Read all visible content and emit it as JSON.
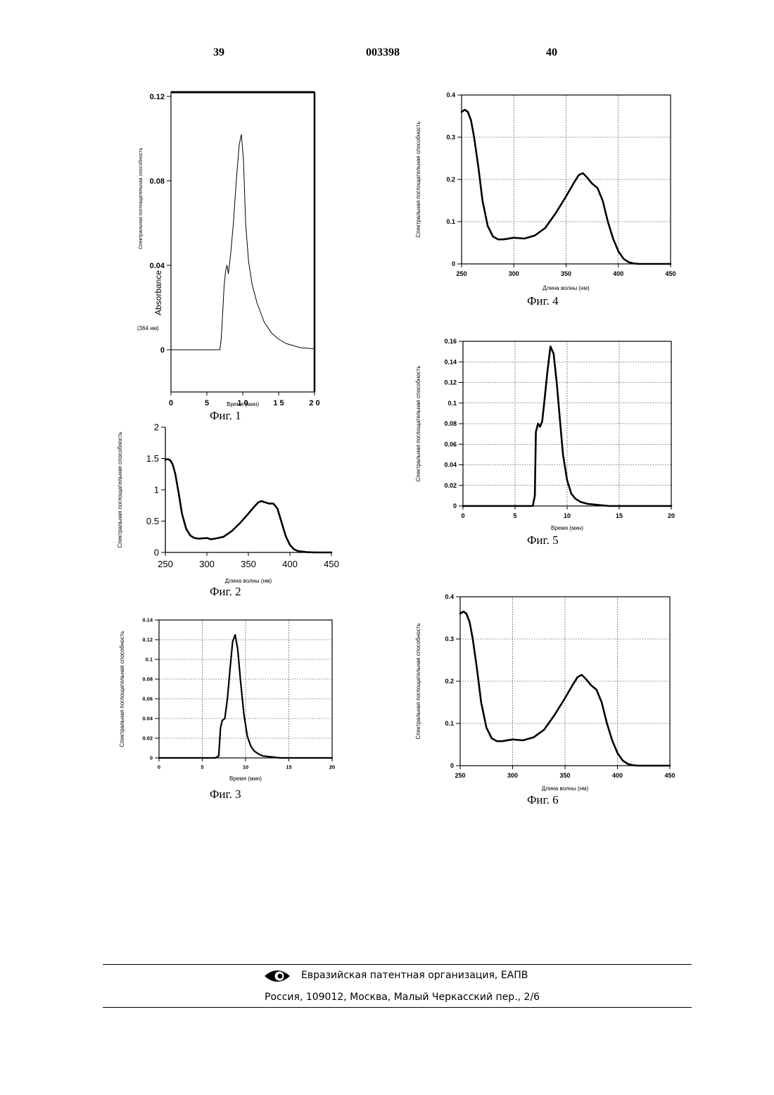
{
  "header": {
    "page_left": "39",
    "doc_number": "003398",
    "page_right": "40"
  },
  "footer": {
    "org": "Евразийская патентная организация, ЕАПВ",
    "address": "Россия, 109012, Москва, Малый Черкасский пер., 2/6"
  },
  "chart_data": [
    {
      "caption": "Фиг. 1",
      "type": "line",
      "xlabel": "Время (мин)",
      "ylabel": "Спектральная поглощательная способность",
      "ylabel2": "Absorbance",
      "ylabel3": "(364 нм)",
      "xlim": [
        0,
        20
      ],
      "ylim": [
        -0.02,
        0.122
      ],
      "xticks": [
        0,
        5,
        10,
        15,
        20
      ],
      "xtick_labels": [
        "0",
        "5",
        "1 0",
        "1 5",
        "2 0"
      ],
      "yticks": [
        0,
        0.04,
        0.08,
        0.12
      ],
      "ytick_labels": [
        "0",
        "0.04",
        "0.08",
        "0.12"
      ],
      "grid": false,
      "x": [
        0,
        3,
        6.8,
        7.0,
        7.4,
        7.6,
        7.8,
        8.0,
        8.3,
        8.7,
        9.1,
        9.5,
        9.8,
        10.1,
        10.4,
        10.8,
        11.3,
        12,
        13,
        14,
        15,
        16,
        17,
        18,
        20
      ],
      "y": [
        0,
        0,
        0,
        0.005,
        0.03,
        0.037,
        0.04,
        0.036,
        0.045,
        0.06,
        0.08,
        0.097,
        0.102,
        0.09,
        0.06,
        0.042,
        0.031,
        0.022,
        0.013,
        0.008,
        0.005,
        0.003,
        0.002,
        0.001,
        0.0004
      ]
    },
    {
      "caption": "Фиг. 2",
      "type": "line",
      "xlabel": "Длина волны (нм)",
      "ylabel": "Спектральная поглощательная способность",
      "xlim": [
        250,
        450
      ],
      "ylim": [
        0,
        2
      ],
      "xticks": [
        250,
        300,
        350,
        400,
        450
      ],
      "xtick_labels": [
        "250",
        "300",
        "350",
        "400",
        "450"
      ],
      "yticks": [
        0,
        0.5,
        1,
        1.5,
        2
      ],
      "ytick_labels": [
        "0",
        "0.5",
        "1",
        "1.5",
        "2"
      ],
      "grid": false,
      "x": [
        250,
        253,
        256,
        259,
        262,
        266,
        270,
        275,
        280,
        285,
        290,
        300,
        305,
        310,
        320,
        330,
        340,
        350,
        357,
        362,
        366,
        370,
        375,
        380,
        385,
        390,
        395,
        400,
        405,
        410,
        420,
        430,
        440,
        450
      ],
      "y": [
        1.48,
        1.49,
        1.47,
        1.4,
        1.25,
        0.95,
        0.62,
        0.38,
        0.27,
        0.23,
        0.22,
        0.23,
        0.21,
        0.22,
        0.25,
        0.34,
        0.47,
        0.62,
        0.73,
        0.8,
        0.82,
        0.8,
        0.78,
        0.78,
        0.7,
        0.48,
        0.26,
        0.12,
        0.05,
        0.02,
        0.005,
        0,
        0,
        0
      ]
    },
    {
      "caption": "Фиг. 3",
      "type": "line",
      "xlabel": "Время (мин)",
      "ylabel": "Спектральная поглощательная способность",
      "xlim": [
        0,
        20
      ],
      "ylim": [
        0,
        0.14
      ],
      "xticks": [
        0,
        5,
        10,
        15,
        20
      ],
      "xtick_labels": [
        "0",
        "5",
        "10",
        "15",
        "20"
      ],
      "yticks": [
        0,
        0.02,
        0.04,
        0.06,
        0.08,
        0.1,
        0.12,
        0.14
      ],
      "ytick_labels": [
        "0",
        "0.02",
        "0.04",
        "0.06",
        "0.08",
        "0.1",
        "0.12",
        "0.14"
      ],
      "grid": true,
      "x": [
        0,
        6.5,
        6.9,
        7.1,
        7.3,
        7.6,
        7.9,
        8.2,
        8.5,
        8.8,
        9.1,
        9.4,
        9.8,
        10.2,
        10.6,
        11,
        11.5,
        12,
        13,
        14,
        20
      ],
      "y": [
        0,
        0,
        0.002,
        0.03,
        0.038,
        0.04,
        0.06,
        0.09,
        0.118,
        0.125,
        0.11,
        0.08,
        0.045,
        0.022,
        0.012,
        0.007,
        0.004,
        0.002,
        0.001,
        0,
        0
      ]
    },
    {
      "caption": "Фиг. 4",
      "type": "line",
      "xlabel": "Длина волны (нм)",
      "ylabel": "Спектральная поглощательная способность",
      "xlim": [
        250,
        450
      ],
      "ylim": [
        0,
        0.4
      ],
      "xticks": [
        250,
        300,
        350,
        400,
        450
      ],
      "xtick_labels": [
        "250",
        "300",
        "350",
        "400",
        "450"
      ],
      "yticks": [
        0,
        0.1,
        0.2,
        0.3,
        0.4
      ],
      "ytick_labels": [
        "0",
        "0.1",
        "0.2",
        "0.3",
        "0.4"
      ],
      "grid": true,
      "x": [
        250,
        253,
        256,
        259,
        262,
        266,
        270,
        275,
        280,
        285,
        290,
        300,
        310,
        320,
        330,
        340,
        350,
        357,
        362,
        366,
        370,
        375,
        380,
        385,
        390,
        395,
        400,
        405,
        410,
        415,
        420,
        430,
        440,
        450
      ],
      "y": [
        0.36,
        0.365,
        0.36,
        0.34,
        0.3,
        0.23,
        0.15,
        0.09,
        0.065,
        0.058,
        0.058,
        0.062,
        0.06,
        0.067,
        0.085,
        0.12,
        0.16,
        0.19,
        0.21,
        0.215,
        0.205,
        0.19,
        0.18,
        0.15,
        0.1,
        0.06,
        0.03,
        0.012,
        0.004,
        0.001,
        0,
        0,
        0,
        0
      ]
    },
    {
      "caption": "Фиг. 5",
      "type": "line",
      "xlabel": "Время (мин)",
      "ylabel": "Спектральная поглощательная способность",
      "xlim": [
        0,
        20
      ],
      "ylim": [
        0,
        0.16
      ],
      "xticks": [
        0,
        5,
        10,
        15,
        20
      ],
      "xtick_labels": [
        "0",
        "5",
        "10",
        "15",
        "20"
      ],
      "yticks": [
        0,
        0.02,
        0.04,
        0.06,
        0.08,
        0.1,
        0.12,
        0.14,
        0.16
      ],
      "ytick_labels": [
        "0",
        "0.02",
        "0.04",
        "0.06",
        "0.08",
        "0.1",
        "0.12",
        "0.14",
        "0.16"
      ],
      "grid": true,
      "x": [
        0,
        6.7,
        6.9,
        7.0,
        7.2,
        7.4,
        7.6,
        7.8,
        8.1,
        8.4,
        8.7,
        9.0,
        9.3,
        9.6,
        10.0,
        10.4,
        10.8,
        11.3,
        12,
        13,
        14,
        20
      ],
      "y": [
        0,
        0,
        0.01,
        0.072,
        0.08,
        0.077,
        0.082,
        0.1,
        0.13,
        0.155,
        0.148,
        0.12,
        0.085,
        0.05,
        0.025,
        0.012,
        0.007,
        0.004,
        0.002,
        0.001,
        0,
        0
      ]
    },
    {
      "caption": "Фиг. 6",
      "type": "line",
      "xlabel": "Длина волны (нм)",
      "ylabel": "Спектральная поглощательная способность",
      "xlim": [
        250,
        450
      ],
      "ylim": [
        0,
        0.4
      ],
      "xticks": [
        250,
        300,
        350,
        400,
        450
      ],
      "xtick_labels": [
        "250",
        "300",
        "350",
        "400",
        "450"
      ],
      "yticks": [
        0,
        0.1,
        0.2,
        0.3,
        0.4
      ],
      "ytick_labels": [
        "0",
        "0.1",
        "0.2",
        "0.3",
        "0.4"
      ],
      "grid": true,
      "x": [
        250,
        253,
        256,
        259,
        262,
        266,
        270,
        275,
        280,
        285,
        290,
        300,
        310,
        320,
        330,
        340,
        350,
        357,
        362,
        366,
        370,
        375,
        380,
        385,
        390,
        395,
        400,
        405,
        410,
        415,
        420,
        430,
        440,
        450
      ],
      "y": [
        0.36,
        0.365,
        0.36,
        0.34,
        0.3,
        0.23,
        0.15,
        0.09,
        0.065,
        0.058,
        0.058,
        0.062,
        0.06,
        0.067,
        0.085,
        0.12,
        0.16,
        0.19,
        0.21,
        0.215,
        0.205,
        0.19,
        0.18,
        0.15,
        0.1,
        0.06,
        0.03,
        0.012,
        0.004,
        0.001,
        0,
        0,
        0,
        0
      ]
    }
  ]
}
